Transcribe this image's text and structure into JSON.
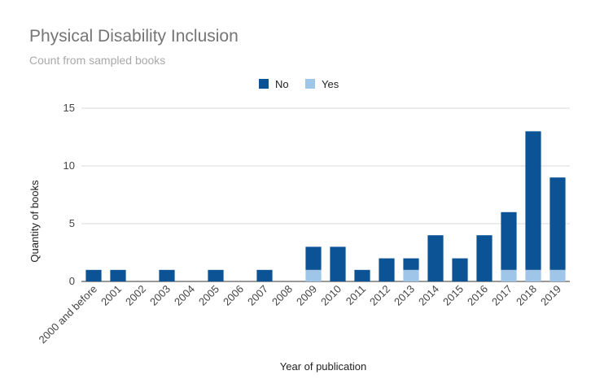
{
  "chart_data": {
    "type": "bar",
    "stacked": true,
    "title": "Physical Disability Inclusion",
    "subtitle": "Count from sampled books",
    "xlabel": "Year of publication",
    "ylabel": "Quantity of books",
    "ylim": [
      0,
      15
    ],
    "yticks": [
      0,
      5,
      10,
      15
    ],
    "grid": true,
    "legend_position": "top-center",
    "categories": [
      "2000 and before",
      "2001",
      "2002",
      "2003",
      "2004",
      "2005",
      "2006",
      "2007",
      "2008",
      "2009",
      "2010",
      "2011",
      "2012",
      "2013",
      "2014",
      "2015",
      "2016",
      "2017",
      "2018",
      "2019"
    ],
    "series": [
      {
        "name": "Yes",
        "color": "#9fc5e8",
        "values": [
          0,
          0,
          0,
          0,
          0,
          0,
          0,
          0,
          0,
          1,
          0,
          0,
          0,
          1,
          0,
          0,
          0,
          1,
          1,
          1
        ]
      },
      {
        "name": "No",
        "color": "#0b5394",
        "values": [
          1,
          1,
          0,
          1,
          0,
          1,
          0,
          1,
          0,
          2,
          3,
          1,
          2,
          1,
          4,
          2,
          4,
          5,
          12,
          8
        ]
      }
    ],
    "legend_order": [
      "No",
      "Yes"
    ]
  }
}
